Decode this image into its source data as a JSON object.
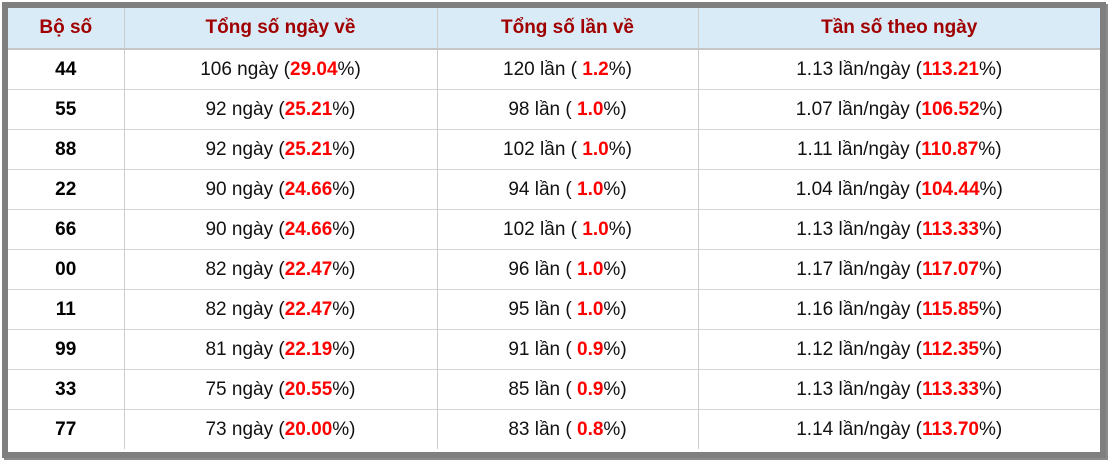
{
  "table": {
    "columns": [
      {
        "label": "Bộ số"
      },
      {
        "label": "Tổng số ngày về"
      },
      {
        "label": "Tổng số lần về"
      },
      {
        "label": "Tần số theo ngày"
      }
    ],
    "rows": [
      {
        "pair": "44",
        "days": {
          "pre": "106 ngày (",
          "hl": "29.04",
          "post": "%)"
        },
        "times": {
          "pre": "120 lần ( ",
          "hl": "1.2",
          "post": "%)"
        },
        "freq": {
          "pre": "1.13 lần/ngày (",
          "hl": "113.21",
          "post": "%)"
        }
      },
      {
        "pair": "55",
        "days": {
          "pre": "92 ngày (",
          "hl": "25.21",
          "post": "%)"
        },
        "times": {
          "pre": "98 lần ( ",
          "hl": "1.0",
          "post": "%)"
        },
        "freq": {
          "pre": "1.07 lần/ngày (",
          "hl": "106.52",
          "post": "%)"
        }
      },
      {
        "pair": "88",
        "days": {
          "pre": "92 ngày (",
          "hl": "25.21",
          "post": "%)"
        },
        "times": {
          "pre": "102 lần ( ",
          "hl": "1.0",
          "post": "%)"
        },
        "freq": {
          "pre": "1.11 lần/ngày (",
          "hl": "110.87",
          "post": "%)"
        }
      },
      {
        "pair": "22",
        "days": {
          "pre": "90 ngày (",
          "hl": "24.66",
          "post": "%)"
        },
        "times": {
          "pre": "94 lần ( ",
          "hl": "1.0",
          "post": "%)"
        },
        "freq": {
          "pre": "1.04 lần/ngày (",
          "hl": "104.44",
          "post": "%)"
        }
      },
      {
        "pair": "66",
        "days": {
          "pre": "90 ngày (",
          "hl": "24.66",
          "post": "%)"
        },
        "times": {
          "pre": "102 lần ( ",
          "hl": "1.0",
          "post": "%)"
        },
        "freq": {
          "pre": "1.13 lần/ngày (",
          "hl": "113.33",
          "post": "%)"
        }
      },
      {
        "pair": "00",
        "days": {
          "pre": "82 ngày (",
          "hl": "22.47",
          "post": "%)"
        },
        "times": {
          "pre": "96 lần ( ",
          "hl": "1.0",
          "post": "%)"
        },
        "freq": {
          "pre": "1.17 lần/ngày (",
          "hl": "117.07",
          "post": "%)"
        }
      },
      {
        "pair": "11",
        "days": {
          "pre": "82 ngày (",
          "hl": "22.47",
          "post": "%)"
        },
        "times": {
          "pre": "95 lần ( ",
          "hl": "1.0",
          "post": "%)"
        },
        "freq": {
          "pre": "1.16 lần/ngày (",
          "hl": "115.85",
          "post": "%)"
        }
      },
      {
        "pair": "99",
        "days": {
          "pre": "81 ngày (",
          "hl": "22.19",
          "post": "%)"
        },
        "times": {
          "pre": "91 lần ( ",
          "hl": "0.9",
          "post": "%)"
        },
        "freq": {
          "pre": "1.12 lần/ngày (",
          "hl": "112.35",
          "post": "%)"
        }
      },
      {
        "pair": "33",
        "days": {
          "pre": "75 ngày (",
          "hl": "20.55",
          "post": "%)"
        },
        "times": {
          "pre": "85 lần ( ",
          "hl": "0.9",
          "post": "%)"
        },
        "freq": {
          "pre": "1.13 lần/ngày (",
          "hl": "113.33",
          "post": "%)"
        }
      },
      {
        "pair": "77",
        "days": {
          "pre": "73 ngày (",
          "hl": "20.00",
          "post": "%)"
        },
        "times": {
          "pre": "83 lần ( ",
          "hl": "0.8",
          "post": "%)"
        },
        "freq": {
          "pre": "1.14 lần/ngày (",
          "hl": "113.70",
          "post": "%)"
        }
      }
    ]
  },
  "colors": {
    "frame": "#7f7f7f",
    "header_bg": "#d8ebf7",
    "header_text": "#a00000",
    "highlight_red": "#ff0000",
    "body_text": "#111111",
    "grid_line": "#cccccc"
  },
  "chart_data": {
    "type": "table",
    "title": "",
    "columns": [
      "Bộ số",
      "Tổng số ngày về",
      "Tổng số lần về",
      "Tần số theo ngày"
    ],
    "rows": [
      [
        "44",
        "106 ngày (29.04%)",
        "120 lần ( 1.2%)",
        "1.13 lần/ngày (113.21%)"
      ],
      [
        "55",
        "92 ngày (25.21%)",
        "98 lần ( 1.0%)",
        "1.07 lần/ngày (106.52%)"
      ],
      [
        "88",
        "92 ngày (25.21%)",
        "102 lần ( 1.0%)",
        "1.11 lần/ngày (110.87%)"
      ],
      [
        "22",
        "90 ngày (24.66%)",
        "94 lần ( 1.0%)",
        "1.04 lần/ngày (104.44%)"
      ],
      [
        "66",
        "90 ngày (24.66%)",
        "102 lần ( 1.0%)",
        "1.13 lần/ngày (113.33%)"
      ],
      [
        "00",
        "82 ngày (22.47%)",
        "96 lần ( 1.0%)",
        "1.17 lần/ngày (117.07%)"
      ],
      [
        "11",
        "82 ngày (22.47%)",
        "95 lần ( 1.0%)",
        "1.16 lần/ngày (115.85%)"
      ],
      [
        "99",
        "81 ngày (22.19%)",
        "91 lần ( 0.9%)",
        "1.12 lần/ngày (112.35%)"
      ],
      [
        "33",
        "75 ngày (20.55%)",
        "85 lần ( 0.9%)",
        "1.13 lần/ngày (113.33%)"
      ],
      [
        "77",
        "73 ngày (20.00%)",
        "83 lần ( 0.8%)",
        "1.14 lần/ngày (113.70%)"
      ]
    ]
  }
}
